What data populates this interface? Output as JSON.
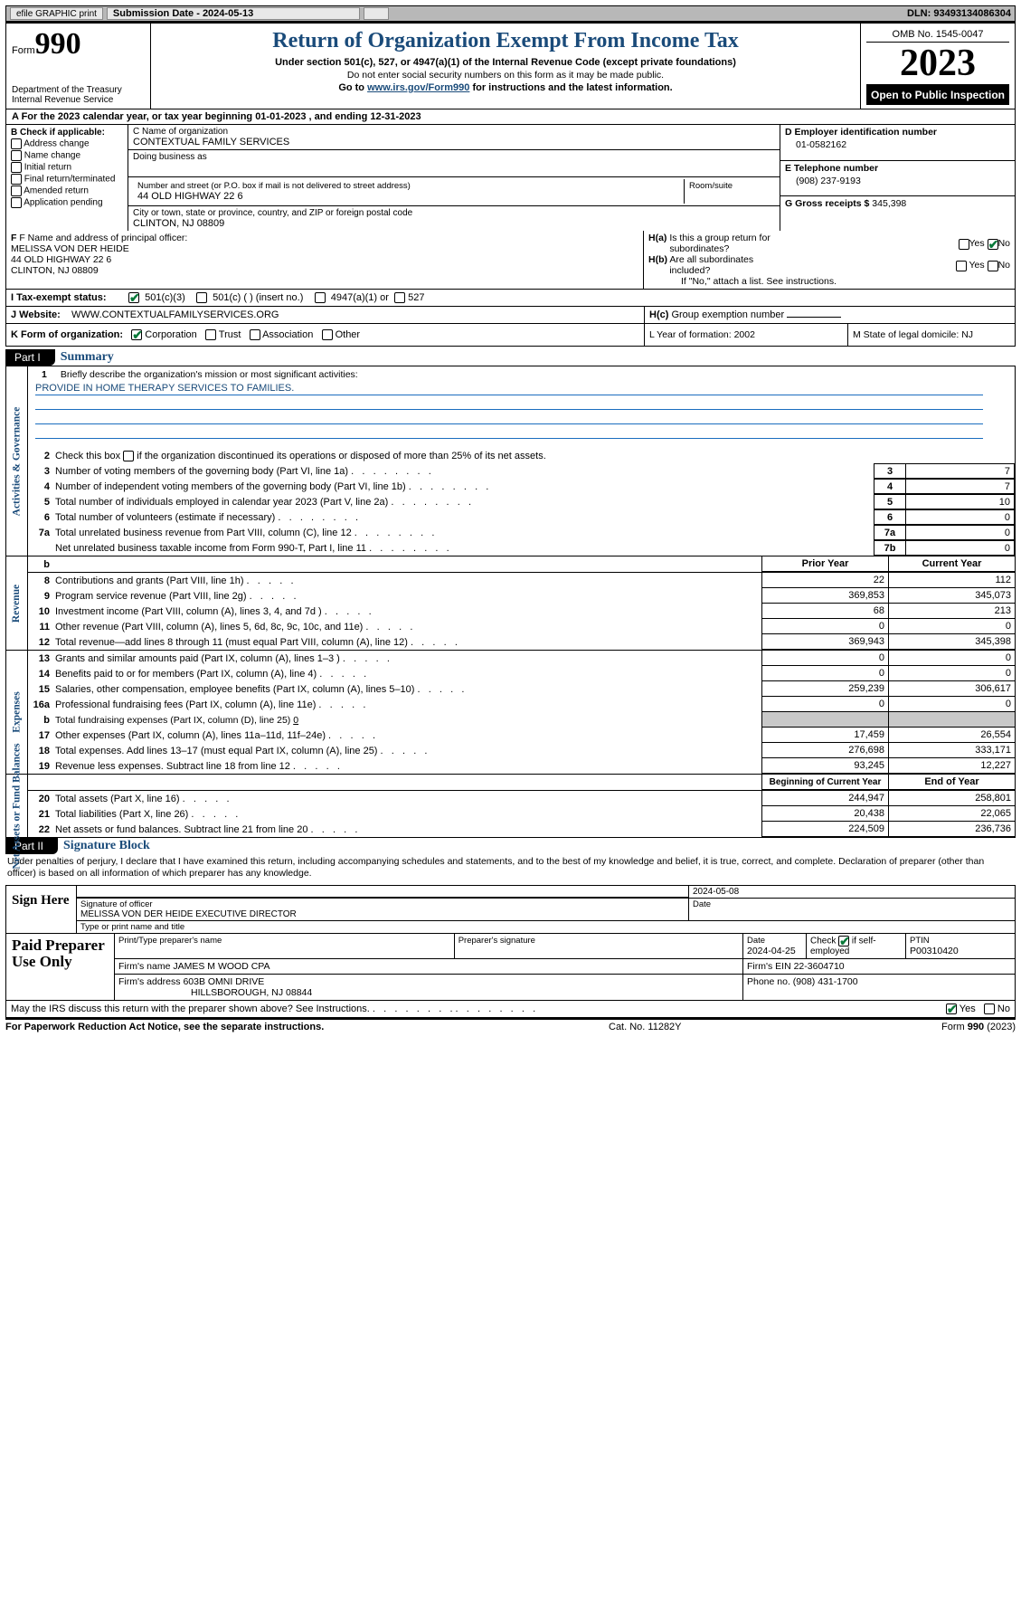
{
  "topbar": {
    "efile": "efile GRAPHIC print",
    "submission": "Submission Date - 2024-05-13",
    "dln": "DLN: 93493134086304"
  },
  "header": {
    "form_label": "Form",
    "form_num": "990",
    "dept": "Department of the Treasury\nInternal Revenue Service",
    "title": "Return of Organization Exempt From Income Tax",
    "sub1": "Under section 501(c), 527, or 4947(a)(1) of the Internal Revenue Code (except private foundations)",
    "sub2": "Do not enter social security numbers on this form as it may be made public.",
    "sub3_pre": "Go to ",
    "sub3_link": "www.irs.gov/Form990",
    "sub3_post": " for instructions and the latest information.",
    "omb": "OMB No. 1545-0047",
    "year": "2023",
    "open": "Open to Public Inspection"
  },
  "row_a": "A   For the 2023 calendar year, or tax year beginning 01-01-2023    , and ending 12-31-2023",
  "box_b": {
    "label": "B Check if applicable:",
    "opts": [
      "Address change",
      "Name change",
      "Initial return",
      "Final return/terminated",
      "Amended return",
      "Application pending"
    ]
  },
  "box_c": {
    "name_lbl": "C Name of organization",
    "name": "CONTEXTUAL FAMILY SERVICES",
    "dba_lbl": "Doing business as",
    "dba": "",
    "street_lbl": "Number and street (or P.O. box if mail is not delivered to street address)",
    "street": "44 OLD HIGHWAY 22 6",
    "room_lbl": "Room/suite",
    "room": "",
    "city_lbl": "City or town, state or province, country, and ZIP or foreign postal code",
    "city": "CLINTON, NJ  08809"
  },
  "box_d": {
    "d_lbl": "D Employer identification number",
    "ein": "01-0582162",
    "e_lbl": "E Telephone number",
    "phone": "(908) 237-9193",
    "g_lbl": "G Gross receipts $ ",
    "g_val": "345,398"
  },
  "box_f": {
    "label": "F  Name and address of principal officer:",
    "name": "MELISSA VON DER HEIDE",
    "addr1": "44 OLD HIGHWAY 22 6",
    "addr2": "CLINTON, NJ  08809"
  },
  "box_h": {
    "ha": "H(a)  Is this a group return for subordinates?",
    "ha_no": true,
    "hb": "H(b)  Are all subordinates included?",
    "hb_note": "If \"No,\" attach a list. See instructions.",
    "hc": "H(c)  Group exemption number "
  },
  "row_i": {
    "label": "I    Tax-exempt status:",
    "c3": "501(c)(3)",
    "c": "501(c) (  ) (insert no.)",
    "a1": "4947(a)(1) or",
    "s527": "527"
  },
  "row_j": {
    "label": "J    Website: ",
    "url": "WWW.CONTEXTUALFAMILYSERVICES.ORG"
  },
  "row_k": {
    "label": "K Form of organization:",
    "opts": [
      "Corporation",
      "Trust",
      "Association",
      "Other"
    ],
    "l": "L Year of formation: 2002",
    "m": "M State of legal domicile: NJ"
  },
  "part1": {
    "tab": "Part I",
    "title": "Summary"
  },
  "sections": {
    "gov_label": "Activities & Governance",
    "rev_label": "Revenue",
    "exp_label": "Expenses",
    "net_label": "Net Assets or Fund Balances"
  },
  "line1": {
    "num": "1",
    "text": "Briefly describe the organization's mission or most significant activities:",
    "val": "PROVIDE IN HOME THERAPY SERVICES TO FAMILIES."
  },
  "line2": {
    "num": "2",
    "text": "Check this box          if the organization discontinued its operations or disposed of more than 25% of its net assets."
  },
  "gov_lines": [
    {
      "num": "3",
      "text": "Number of voting members of the governing body (Part VI, line 1a)",
      "box": "3",
      "val": "7"
    },
    {
      "num": "4",
      "text": "Number of independent voting members of the governing body (Part VI, line 1b)",
      "box": "4",
      "val": "7"
    },
    {
      "num": "5",
      "text": "Total number of individuals employed in calendar year 2023 (Part V, line 2a)",
      "box": "5",
      "val": "10"
    },
    {
      "num": "6",
      "text": "Total number of volunteers (estimate if necessary)",
      "box": "6",
      "val": "0"
    },
    {
      "num": "7a",
      "text": "Total unrelated business revenue from Part VIII, column (C), line 12",
      "box": "7a",
      "val": "0"
    },
    {
      "num": "",
      "text": "Net unrelated business taxable income from Form 990-T, Part I, line 11",
      "box": "7b",
      "val": "0"
    }
  ],
  "two_col_hdr": {
    "b": "b",
    "prior": "Prior Year",
    "curr": "Current Year"
  },
  "rev_lines": [
    {
      "num": "8",
      "text": "Contributions and grants (Part VIII, line 1h)",
      "prior": "22",
      "curr": "112"
    },
    {
      "num": "9",
      "text": "Program service revenue (Part VIII, line 2g)",
      "prior": "369,853",
      "curr": "345,073"
    },
    {
      "num": "10",
      "text": "Investment income (Part VIII, column (A), lines 3, 4, and 7d )",
      "prior": "68",
      "curr": "213"
    },
    {
      "num": "11",
      "text": "Other revenue (Part VIII, column (A), lines 5, 6d, 8c, 9c, 10c, and 11e)",
      "prior": "0",
      "curr": "0"
    },
    {
      "num": "12",
      "text": "Total revenue—add lines 8 through 11 (must equal Part VIII, column (A), line 12)",
      "prior": "369,943",
      "curr": "345,398"
    }
  ],
  "exp_lines": [
    {
      "num": "13",
      "text": "Grants and similar amounts paid (Part IX, column (A), lines 1–3 )",
      "prior": "0",
      "curr": "0"
    },
    {
      "num": "14",
      "text": "Benefits paid to or for members (Part IX, column (A), line 4)",
      "prior": "0",
      "curr": "0"
    },
    {
      "num": "15",
      "text": "Salaries, other compensation, employee benefits (Part IX, column (A), lines 5–10)",
      "prior": "259,239",
      "curr": "306,617"
    },
    {
      "num": "16a",
      "text": "Professional fundraising fees (Part IX, column (A), line 11e)",
      "prior": "0",
      "curr": "0"
    }
  ],
  "line_b": {
    "num": "b",
    "text": "Total fundraising expenses (Part IX, column (D), line 25) ",
    "val": "0"
  },
  "exp_lines2": [
    {
      "num": "17",
      "text": "Other expenses (Part IX, column (A), lines 11a–11d, 11f–24e)",
      "prior": "17,459",
      "curr": "26,554"
    },
    {
      "num": "18",
      "text": "Total expenses. Add lines 13–17 (must equal Part IX, column (A), line 25)",
      "prior": "276,698",
      "curr": "333,171"
    },
    {
      "num": "19",
      "text": "Revenue less expenses. Subtract line 18 from line 12",
      "prior": "93,245",
      "curr": "12,227"
    }
  ],
  "net_hdr": {
    "prior": "Beginning of Current Year",
    "curr": "End of Year"
  },
  "net_lines": [
    {
      "num": "20",
      "text": "Total assets (Part X, line 16)",
      "prior": "244,947",
      "curr": "258,801"
    },
    {
      "num": "21",
      "text": "Total liabilities (Part X, line 26)",
      "prior": "20,438",
      "curr": "22,065"
    },
    {
      "num": "22",
      "text": "Net assets or fund balances. Subtract line 21 from line 20",
      "prior": "224,509",
      "curr": "236,736"
    }
  ],
  "part2": {
    "tab": "Part II",
    "title": "Signature Block",
    "statement": "Under penalties of perjury, I declare that I have examined this return, including accompanying schedules and statements, and to the best of my knowledge and belief, it is true, correct, and complete. Declaration of preparer (other than officer) is based on all information of which preparer has any knowledge."
  },
  "sign": {
    "here": "Sign Here",
    "date": "2024-05-08",
    "sig_lbl": "Signature of officer",
    "sig_val": "MELISSA VON DER HEIDE  EXECUTIVE DIRECTOR",
    "date_lbl": "Date",
    "type_lbl": "Type or print name and title"
  },
  "prep": {
    "label": "Paid Preparer Use Only",
    "col1": "Print/Type preparer's name",
    "col2": "Preparer's signature",
    "col3_lbl": "Date",
    "col3_val": "2024-04-25",
    "col4_lbl": "Check         if self-employed",
    "col5_lbl": "PTIN",
    "col5_val": "P00310420",
    "firm_lbl": "Firm's name      ",
    "firm": "JAMES M WOOD CPA",
    "firm_ein_lbl": "Firm's EIN  ",
    "firm_ein": "22-3604710",
    "addr_lbl": "Firm's address ",
    "addr1": "603B OMNI DRIVE",
    "addr2": "HILLSBOROUGH, NJ  08844",
    "phone_lbl": "Phone no. ",
    "phone": "(908) 431-1700"
  },
  "may": {
    "text": "May the IRS discuss this return with the preparer shown above? See Instructions.",
    "yes": true
  },
  "footer": {
    "f1": "For Paperwork Reduction Act Notice, see the separate instructions.",
    "f2": "Cat. No. 11282Y",
    "f3_pre": "Form ",
    "f3_bold": "990",
    "f3_post": " (2023)"
  }
}
